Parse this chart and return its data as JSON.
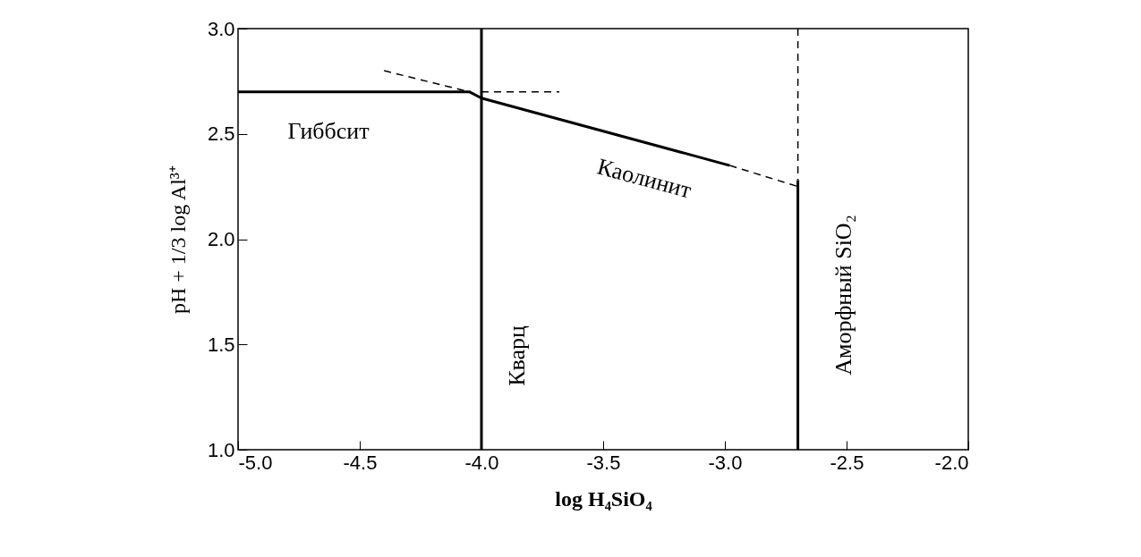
{
  "chart_data": {
    "type": "line",
    "xlabel": "log  H₄SiO₄",
    "ylabel": "pH + 1/3 log Al³⁺",
    "xlim": [
      -5.0,
      -2.0
    ],
    "ylim": [
      1.0,
      3.0
    ],
    "xticks": [
      {
        "value": -5,
        "label": "-5.0"
      },
      {
        "value": -4.5,
        "label": "-4.5"
      },
      {
        "value": -4,
        "label": "-4.0"
      },
      {
        "value": -3.5,
        "label": "-3.5"
      },
      {
        "value": -3,
        "label": "-3.0"
      },
      {
        "value": -2.5,
        "label": "-2.5"
      },
      {
        "value": -2,
        "label": "-2.0"
      }
    ],
    "yticks": [
      {
        "value": 1,
        "label": "1.0"
      },
      1.5,
      {
        "value": 2,
        "label": "2.0"
      },
      2.5,
      {
        "value": 3,
        "label": "3.0"
      }
    ],
    "grid": false,
    "marker": "none",
    "series": [
      {
        "color": "#000000",
        "line_style": "solid",
        "x": [
          -5.0,
          -4.05,
          -4.0,
          -2.98
        ],
        "values": [
          2.7,
          2.7,
          2.67,
          2.35
        ]
      },
      {
        "color": "#000000",
        "line_style": "dashed",
        "x": [
          -4.4,
          -4.05
        ],
        "values": [
          2.8,
          2.7
        ]
      },
      {
        "color": "#000000",
        "line_style": "dashed",
        "x": [
          -4.0,
          -3.68
        ],
        "values": [
          2.7,
          2.7
        ]
      },
      {
        "color": "#000000",
        "line_style": "dashed",
        "x": [
          -2.98,
          -2.7
        ],
        "values": [
          2.35,
          2.25
        ]
      },
      {
        "color": "#000000",
        "line_style": "solid",
        "x": [
          -4.0,
          -4.0
        ],
        "values": [
          1.0,
          3.0
        ]
      },
      {
        "color": "#000000",
        "line_style": "dashed",
        "x": [
          -2.7,
          -2.7
        ],
        "values": [
          3.0,
          2.28
        ]
      },
      {
        "color": "#000000",
        "line_style": "solid",
        "x": [
          -2.7,
          -2.7
        ],
        "values": [
          2.28,
          1.0
        ]
      }
    ],
    "annotations": [
      "Гиббсит",
      "Каолинит",
      "Кварц",
      "Аморфный SiO₂"
    ]
  }
}
